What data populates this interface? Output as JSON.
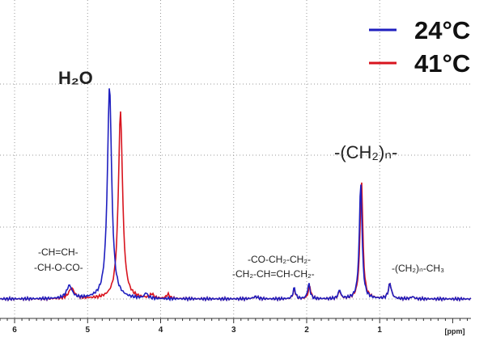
{
  "chart_data": {
    "type": "line",
    "title": "",
    "xlabel": "[ppm]",
    "ylabel": "",
    "xlim": [
      6.2,
      -0.25
    ],
    "x_reversed": true,
    "x_ticks": [
      "6",
      "5",
      "4",
      "3",
      "2",
      "1"
    ],
    "grid": true,
    "legend_position": "top-right",
    "series": [
      {
        "name": "24°C",
        "color": "#1f1fbf",
        "peaks": [
          {
            "x": 5.25,
            "height": 0.06,
            "width": 0.09
          },
          {
            "x": 4.7,
            "height": 0.99,
            "width": 0.07
          },
          {
            "x": 4.2,
            "height": 0.025,
            "width": 0.05
          },
          {
            "x": 2.7,
            "height": 0.01,
            "width": 0.08
          },
          {
            "x": 2.17,
            "height": 0.05,
            "width": 0.04
          },
          {
            "x": 1.97,
            "height": 0.07,
            "width": 0.04
          },
          {
            "x": 1.55,
            "height": 0.04,
            "width": 0.04
          },
          {
            "x": 1.26,
            "height": 0.54,
            "width": 0.045
          },
          {
            "x": 0.86,
            "height": 0.07,
            "width": 0.05
          },
          {
            "x": 0.55,
            "height": 0.01,
            "width": 0.05
          }
        ]
      },
      {
        "name": "41°C",
        "color": "#d8141e",
        "peaks": [
          {
            "x": 5.22,
            "height": 0.05,
            "width": 0.09
          },
          {
            "x": 4.55,
            "height": 0.87,
            "width": 0.07
          },
          {
            "x": 4.12,
            "height": 0.02,
            "width": 0.05
          },
          {
            "x": 3.9,
            "height": 0.02,
            "width": 0.05
          },
          {
            "x": 2.7,
            "height": 0.01,
            "width": 0.08
          },
          {
            "x": 2.17,
            "height": 0.045,
            "width": 0.04
          },
          {
            "x": 1.96,
            "height": 0.06,
            "width": 0.04
          },
          {
            "x": 1.55,
            "height": 0.035,
            "width": 0.04
          },
          {
            "x": 1.25,
            "height": 0.56,
            "width": 0.045
          },
          {
            "x": 0.86,
            "height": 0.07,
            "width": 0.05
          },
          {
            "x": 0.55,
            "height": 0.01,
            "width": 0.05
          }
        ]
      }
    ],
    "annotations": [
      {
        "id": "h2o",
        "text": "H₂O",
        "bold_parts": "H"
      },
      {
        "id": "ch2n",
        "text": "-(CH₂)ₙ-"
      },
      {
        "id": "ch3",
        "text": "-(CH₂)ₙ-CH₃"
      },
      {
        "id": "olefinic_1",
        "text": "-CH=CH-"
      },
      {
        "id": "olefinic_2",
        "text": "-CH-O-CO-"
      },
      {
        "id": "mid_1",
        "text": "-CO-CH₂-CH₂-"
      },
      {
        "id": "mid_2",
        "text": "-CH₂-CH=CH-CH₂-"
      }
    ]
  }
}
